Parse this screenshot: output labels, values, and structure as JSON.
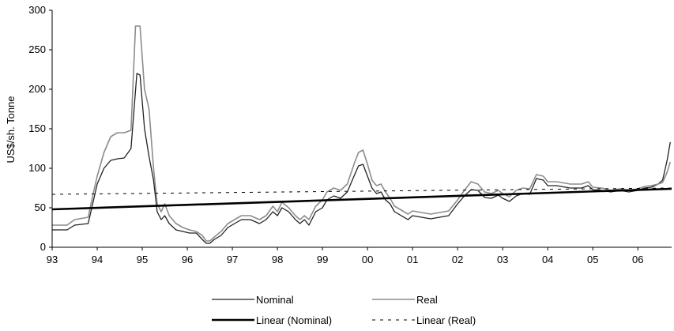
{
  "chart_data": {
    "type": "line",
    "title": "",
    "xlabel": "",
    "ylabel": "US$/sh. Tonne",
    "ylim": [
      0,
      300
    ],
    "xlim": [
      1993,
      2006.75
    ],
    "yticks": [
      "0",
      "50",
      "100",
      "150",
      "200",
      "250",
      "300"
    ],
    "xticks": [
      {
        "value": 1993,
        "label": "93"
      },
      {
        "value": 1994,
        "label": "94"
      },
      {
        "value": 1995,
        "label": "95"
      },
      {
        "value": 1996,
        "label": "96"
      },
      {
        "value": 1997,
        "label": "97"
      },
      {
        "value": 1998,
        "label": "98"
      },
      {
        "value": 1999,
        "label": "99"
      },
      {
        "value": 2000,
        "label": "00"
      },
      {
        "value": 2001,
        "label": "01"
      },
      {
        "value": 2002,
        "label": "02"
      },
      {
        "value": 2003,
        "label": "03"
      },
      {
        "value": 2004,
        "label": "04"
      },
      {
        "value": 2005,
        "label": "05"
      },
      {
        "value": 2006,
        "label": "06"
      }
    ],
    "grid": false,
    "legend_position": "bottom",
    "series": [
      {
        "name": "Nominal",
        "color": "#222222",
        "style": "solid",
        "width": 1.3,
        "points": [
          [
            1993.0,
            22
          ],
          [
            1993.33,
            22
          ],
          [
            1993.5,
            28
          ],
          [
            1993.8,
            30
          ],
          [
            1993.9,
            55
          ],
          [
            1994.0,
            80
          ],
          [
            1994.15,
            100
          ],
          [
            1994.3,
            110
          ],
          [
            1994.45,
            112
          ],
          [
            1994.6,
            113
          ],
          [
            1994.75,
            125
          ],
          [
            1994.88,
            220
          ],
          [
            1994.95,
            218
          ],
          [
            1995.05,
            150
          ],
          [
            1995.15,
            115
          ],
          [
            1995.25,
            85
          ],
          [
            1995.33,
            45
          ],
          [
            1995.42,
            35
          ],
          [
            1995.5,
            40
          ],
          [
            1995.6,
            30
          ],
          [
            1995.75,
            22
          ],
          [
            1995.9,
            20
          ],
          [
            1996.05,
            18
          ],
          [
            1996.2,
            18
          ],
          [
            1996.33,
            10
          ],
          [
            1996.42,
            5
          ],
          [
            1996.5,
            5
          ],
          [
            1996.6,
            10
          ],
          [
            1996.75,
            15
          ],
          [
            1996.9,
            25
          ],
          [
            1997.05,
            30
          ],
          [
            1997.2,
            35
          ],
          [
            1997.4,
            35
          ],
          [
            1997.6,
            30
          ],
          [
            1997.75,
            35
          ],
          [
            1997.9,
            45
          ],
          [
            1998.0,
            40
          ],
          [
            1998.1,
            50
          ],
          [
            1998.25,
            45
          ],
          [
            1998.4,
            35
          ],
          [
            1998.5,
            30
          ],
          [
            1998.6,
            35
          ],
          [
            1998.7,
            28
          ],
          [
            1998.85,
            45
          ],
          [
            1999.0,
            50
          ],
          [
            1999.1,
            60
          ],
          [
            1999.25,
            65
          ],
          [
            1999.4,
            62
          ],
          [
            1999.55,
            70
          ],
          [
            1999.7,
            90
          ],
          [
            1999.8,
            103
          ],
          [
            1999.9,
            105
          ],
          [
            2000.0,
            90
          ],
          [
            2000.1,
            75
          ],
          [
            2000.2,
            68
          ],
          [
            2000.3,
            70
          ],
          [
            2000.4,
            60
          ],
          [
            2000.5,
            55
          ],
          [
            2000.6,
            45
          ],
          [
            2000.75,
            40
          ],
          [
            2000.9,
            35
          ],
          [
            2001.0,
            40
          ],
          [
            2001.2,
            38
          ],
          [
            2001.4,
            36
          ],
          [
            2001.6,
            38
          ],
          [
            2001.8,
            40
          ],
          [
            2002.0,
            55
          ],
          [
            2002.15,
            65
          ],
          [
            2002.3,
            73
          ],
          [
            2002.45,
            72
          ],
          [
            2002.6,
            63
          ],
          [
            2002.75,
            62
          ],
          [
            2002.9,
            66
          ],
          [
            2003.0,
            62
          ],
          [
            2003.15,
            58
          ],
          [
            2003.3,
            65
          ],
          [
            2003.45,
            68
          ],
          [
            2003.6,
            67
          ],
          [
            2003.75,
            87
          ],
          [
            2003.9,
            85
          ],
          [
            2004.0,
            78
          ],
          [
            2004.2,
            78
          ],
          [
            2004.5,
            75
          ],
          [
            2004.75,
            75
          ],
          [
            2004.9,
            78
          ],
          [
            2005.0,
            73
          ],
          [
            2005.2,
            72
          ],
          [
            2005.4,
            70
          ],
          [
            2005.6,
            72
          ],
          [
            2005.8,
            70
          ],
          [
            2006.0,
            72
          ],
          [
            2006.15,
            75
          ],
          [
            2006.3,
            76
          ],
          [
            2006.45,
            80
          ],
          [
            2006.55,
            85
          ],
          [
            2006.65,
            110
          ],
          [
            2006.72,
            133
          ]
        ]
      },
      {
        "name": "Real",
        "color": "#8c8c8c",
        "style": "solid",
        "width": 1.6,
        "points": [
          [
            1993.0,
            28
          ],
          [
            1993.33,
            28
          ],
          [
            1993.5,
            35
          ],
          [
            1993.8,
            38
          ],
          [
            1993.9,
            65
          ],
          [
            1994.0,
            90
          ],
          [
            1994.15,
            120
          ],
          [
            1994.3,
            140
          ],
          [
            1994.45,
            145
          ],
          [
            1994.6,
            145
          ],
          [
            1994.75,
            148
          ],
          [
            1994.85,
            280
          ],
          [
            1994.95,
            280
          ],
          [
            1995.05,
            200
          ],
          [
            1995.15,
            175
          ],
          [
            1995.25,
            100
          ],
          [
            1995.33,
            55
          ],
          [
            1995.42,
            45
          ],
          [
            1995.5,
            55
          ],
          [
            1995.6,
            40
          ],
          [
            1995.75,
            30
          ],
          [
            1995.9,
            25
          ],
          [
            1996.05,
            22
          ],
          [
            1996.2,
            20
          ],
          [
            1996.33,
            15
          ],
          [
            1996.42,
            8
          ],
          [
            1996.5,
            8
          ],
          [
            1996.6,
            13
          ],
          [
            1996.75,
            20
          ],
          [
            1996.9,
            30
          ],
          [
            1997.05,
            35
          ],
          [
            1997.2,
            40
          ],
          [
            1997.4,
            40
          ],
          [
            1997.6,
            35
          ],
          [
            1997.75,
            40
          ],
          [
            1997.9,
            52
          ],
          [
            1998.0,
            45
          ],
          [
            1998.1,
            57
          ],
          [
            1998.25,
            50
          ],
          [
            1998.4,
            40
          ],
          [
            1998.5,
            35
          ],
          [
            1998.6,
            40
          ],
          [
            1998.7,
            35
          ],
          [
            1998.85,
            52
          ],
          [
            1999.0,
            60
          ],
          [
            1999.1,
            70
          ],
          [
            1999.25,
            75
          ],
          [
            1999.4,
            72
          ],
          [
            1999.55,
            80
          ],
          [
            1999.7,
            105
          ],
          [
            1999.8,
            120
          ],
          [
            1999.9,
            123
          ],
          [
            2000.0,
            105
          ],
          [
            2000.1,
            85
          ],
          [
            2000.2,
            78
          ],
          [
            2000.3,
            80
          ],
          [
            2000.4,
            70
          ],
          [
            2000.5,
            62
          ],
          [
            2000.6,
            52
          ],
          [
            2000.75,
            47
          ],
          [
            2000.9,
            42
          ],
          [
            2001.0,
            46
          ],
          [
            2001.2,
            44
          ],
          [
            2001.4,
            42
          ],
          [
            2001.6,
            44
          ],
          [
            2001.8,
            46
          ],
          [
            2002.0,
            60
          ],
          [
            2002.15,
            72
          ],
          [
            2002.3,
            83
          ],
          [
            2002.45,
            80
          ],
          [
            2002.6,
            70
          ],
          [
            2002.75,
            68
          ],
          [
            2002.9,
            72
          ],
          [
            2003.0,
            68
          ],
          [
            2003.15,
            64
          ],
          [
            2003.3,
            72
          ],
          [
            2003.45,
            75
          ],
          [
            2003.6,
            74
          ],
          [
            2003.75,
            92
          ],
          [
            2003.9,
            90
          ],
          [
            2004.0,
            83
          ],
          [
            2004.2,
            83
          ],
          [
            2004.5,
            80
          ],
          [
            2004.75,
            80
          ],
          [
            2004.9,
            83
          ],
          [
            2005.0,
            76
          ],
          [
            2005.2,
            75
          ],
          [
            2005.4,
            72
          ],
          [
            2005.6,
            74
          ],
          [
            2005.8,
            72
          ],
          [
            2006.0,
            74
          ],
          [
            2006.15,
            77
          ],
          [
            2006.3,
            78
          ],
          [
            2006.45,
            80
          ],
          [
            2006.55,
            82
          ],
          [
            2006.65,
            95
          ],
          [
            2006.72,
            108
          ]
        ]
      },
      {
        "name": "Linear (Nominal)",
        "color": "#000000",
        "style": "solid",
        "width": 2.6,
        "points": [
          [
            1993.0,
            48
          ],
          [
            2006.75,
            74
          ]
        ]
      },
      {
        "name": "Linear (Real)",
        "color": "#000000",
        "style": "dotted",
        "width": 1,
        "points": [
          [
            1993.0,
            67
          ],
          [
            2006.75,
            75
          ]
        ]
      }
    ]
  }
}
